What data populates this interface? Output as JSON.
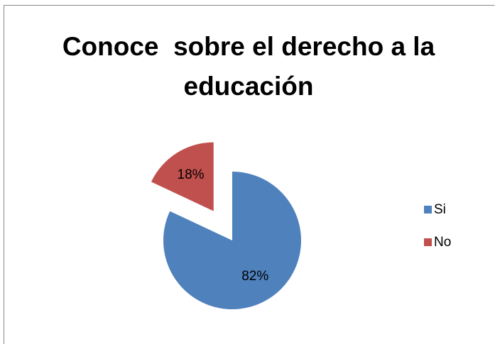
{
  "chart_data": {
    "type": "pie",
    "title": "Conoce  sobre el derecho a la educación",
    "categories": [
      "Si",
      "No"
    ],
    "values": [
      82,
      18
    ],
    "value_labels": [
      "82%",
      "18%"
    ],
    "colors": [
      "#4f81bd",
      "#c0504d"
    ],
    "exploded": [
      "No"
    ],
    "legend": "right"
  }
}
